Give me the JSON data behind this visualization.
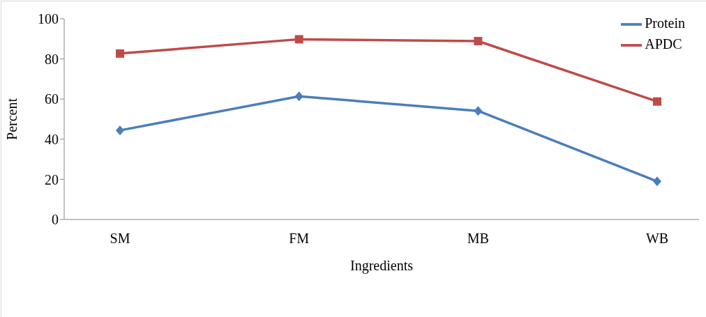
{
  "chart_data": {
    "type": "line",
    "xlabel": "Ingredients",
    "ylabel": "Percent",
    "categories": [
      "SM",
      "FM",
      "MB",
      "WB"
    ],
    "series": [
      {
        "name": "Protein",
        "color": "#4a7ebb",
        "marker": "diamond",
        "values": [
          44.4,
          61.4,
          54.1,
          19.0
        ]
      },
      {
        "name": "APDC",
        "color": "#be4b48",
        "marker": "square",
        "values": [
          82.7,
          89.8,
          88.9,
          58.8
        ]
      }
    ],
    "ylim": [
      0,
      100
    ],
    "yticks": [
      0,
      20,
      40,
      60,
      80,
      100
    ],
    "grid": false,
    "legend": "top right"
  }
}
